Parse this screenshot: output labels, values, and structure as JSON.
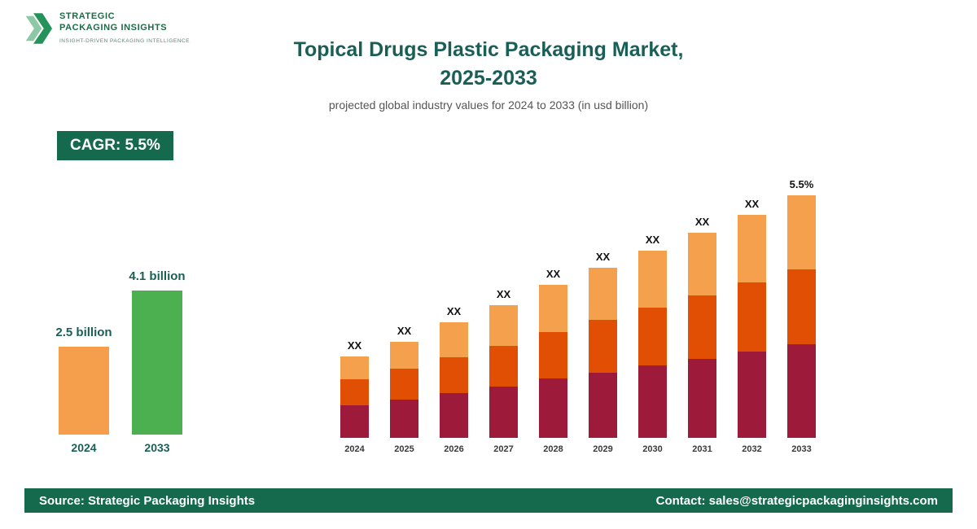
{
  "logo": {
    "name_line1": "STRATEGIC",
    "name_line2": "PACKAGING INSIGHTS",
    "tagline": "INSIGHT-DRIVEN PACKAGING INTELLIGENCE"
  },
  "header": {
    "title_line1": "Topical Drugs Plastic Packaging Market,",
    "title_line2": "2025-2033",
    "subtitle": "projected global industry values for 2024 to 2033 (in usd billion)"
  },
  "cagr_badge": {
    "label": "CAGR: 5.5%"
  },
  "footer": {
    "source": "Source: Strategic Packaging Insights",
    "contact": "Contact: sales@strategicpackaginginsights.com"
  },
  "colors": {
    "title_teal": "#1a5f57",
    "badge_bg": "#156a4d",
    "footer_bg": "#156a4d",
    "logo_green": "#1d6b46",
    "summary_2024_bar": "#f59e4b",
    "summary_2033_bar": "#4caf50",
    "stack_bottom": "#9e1a3a",
    "stack_middle": "#e04f04",
    "stack_top": "#f5a04c"
  },
  "chart_data": [
    {
      "id": "summary_growth",
      "type": "bar",
      "categories": [
        "2024",
        "2033"
      ],
      "values": [
        2.5,
        4.1
      ],
      "value_labels": [
        "2.5 billion",
        "4.1 billion"
      ],
      "bar_colors": [
        "#f59e4b",
        "#4caf50"
      ]
    },
    {
      "id": "market_by_year",
      "type": "stacked-bar",
      "categories": [
        "2024",
        "2025",
        "2026",
        "2027",
        "2028",
        "2029",
        "2030",
        "2031",
        "2032",
        "2033"
      ],
      "value_labels": [
        "XX",
        "XX",
        "XX",
        "XX",
        "XX",
        "XX",
        "XX",
        "XX",
        "XX",
        "5.5%"
      ],
      "series": [
        {
          "name": "segment-bottom",
          "color": "#9e1a3a",
          "heights": [
            40,
            47,
            55,
            63,
            73,
            80,
            89,
            97,
            106,
            115
          ]
        },
        {
          "name": "segment-middle",
          "color": "#e04f04",
          "heights": [
            32,
            38,
            44,
            50,
            57,
            65,
            71,
            78,
            85,
            92
          ]
        },
        {
          "name": "segment-top",
          "color": "#f5a04c",
          "heights": [
            28,
            33,
            43,
            50,
            58,
            64,
            70,
            77,
            83,
            91
          ]
        }
      ]
    }
  ]
}
